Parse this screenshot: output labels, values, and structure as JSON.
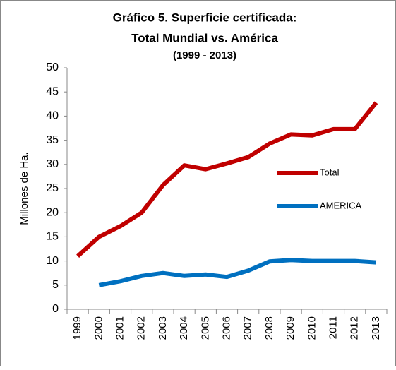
{
  "chart_data": {
    "type": "line",
    "title": [
      "Gráfico 5.  Superficie certificada:",
      "Total Mundial vs. América",
      "(1999 - 2013)"
    ],
    "y_label": "Millones de Ha.",
    "categories": [
      "1999",
      "2000",
      "2001",
      "2002",
      "2003",
      "2004",
      "2005",
      "2006",
      "2007",
      "2008",
      "2009",
      "2010",
      "2011",
      "2012",
      "2013"
    ],
    "series": [
      {
        "name": "Total",
        "color": "#c00000",
        "values": [
          11,
          15,
          17.2,
          20,
          25.7,
          29.8,
          29,
          30.2,
          31.5,
          34.3,
          36.2,
          36,
          37.3,
          37.3,
          42.8
        ]
      },
      {
        "name": "AMERICA",
        "color": "#0070c0",
        "values": [
          null,
          5,
          5.8,
          6.9,
          7.5,
          6.9,
          7.2,
          6.7,
          8,
          9.9,
          10.2,
          10,
          10,
          10,
          9.7
        ]
      }
    ],
    "ylim": [
      0,
      50
    ],
    "yticks": [
      0,
      5,
      10,
      15,
      20,
      25,
      30,
      35,
      40,
      45,
      50
    ],
    "grid": false,
    "legend": "center right"
  }
}
